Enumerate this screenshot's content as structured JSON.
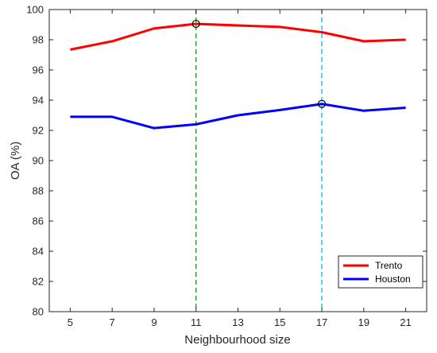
{
  "chart_data": {
    "type": "line",
    "title": "",
    "xlabel": "Neighbourhood size",
    "ylabel": "OA (%)",
    "x": [
      5,
      7,
      9,
      11,
      13,
      15,
      17,
      19,
      21
    ],
    "xlim": [
      4,
      22
    ],
    "ylim": [
      80,
      100
    ],
    "yticks": [
      80,
      82,
      84,
      86,
      88,
      90,
      92,
      94,
      96,
      98,
      100
    ],
    "grid": false,
    "legend_position": "bottom-right",
    "series": [
      {
        "name": "Trento",
        "color": "#ff0000",
        "values": [
          97.35,
          97.9,
          98.75,
          99.05,
          98.95,
          98.85,
          98.5,
          97.9,
          98.0
        ]
      },
      {
        "name": "Houston",
        "color": "#0000ff",
        "values": [
          92.9,
          92.9,
          92.15,
          92.4,
          93.0,
          93.35,
          93.75,
          93.3,
          93.5
        ]
      }
    ],
    "reference_lines": [
      {
        "x": 11,
        "color": "#2ca02c",
        "style": "dashed"
      },
      {
        "x": 17,
        "color": "#1ec8f0",
        "style": "dashed"
      }
    ],
    "markers": [
      {
        "series": "Trento",
        "x": 11,
        "y": 99.05,
        "shape": "circle"
      },
      {
        "series": "Houston",
        "x": 17,
        "y": 93.75,
        "shape": "circle"
      }
    ]
  }
}
